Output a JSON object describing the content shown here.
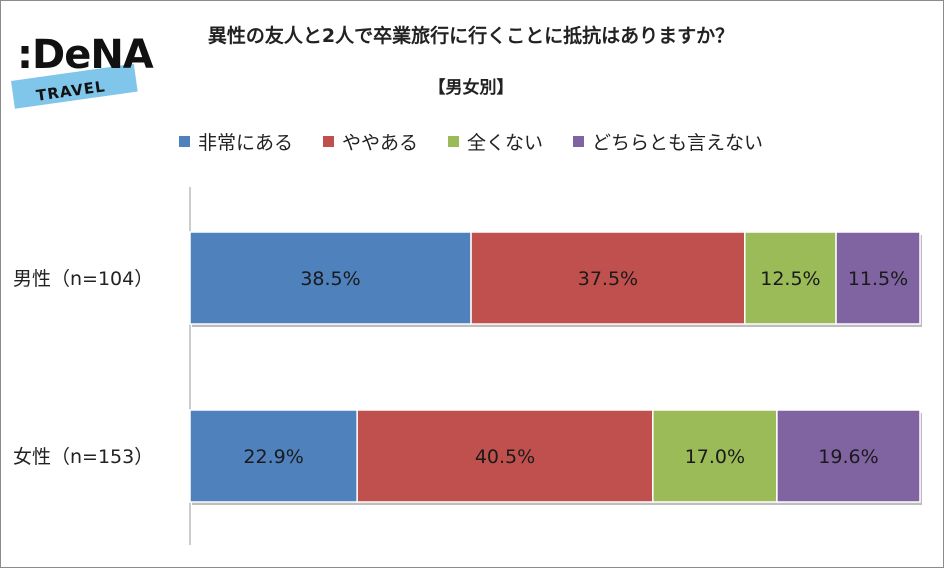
{
  "logo": {
    "main": ":DeNA",
    "sub": "TRAVEL"
  },
  "chart_data": {
    "type": "bar",
    "orientation": "horizontal",
    "stacked": true,
    "title": "異性の友人と2人で卒業旅行に行くことに抵抗はありますか？",
    "subtitle": "【男女別】",
    "categories": [
      "男性（n=104）",
      "女性（n=153）"
    ],
    "series": [
      {
        "name": "非常にある",
        "color": "#4f81bd",
        "values": [
          38.5,
          22.9
        ]
      },
      {
        "name": "ややある",
        "color": "#c0504d",
        "values": [
          37.5,
          40.5
        ]
      },
      {
        "name": "全くない",
        "color": "#9bbb59",
        "values": [
          12.5,
          17.0
        ]
      },
      {
        "name": "どちらとも言えない",
        "color": "#8064a2",
        "values": [
          11.5,
          19.6
        ]
      }
    ],
    "value_suffix": "%",
    "xlim": [
      0,
      100
    ],
    "legend": "top",
    "grid": false
  }
}
